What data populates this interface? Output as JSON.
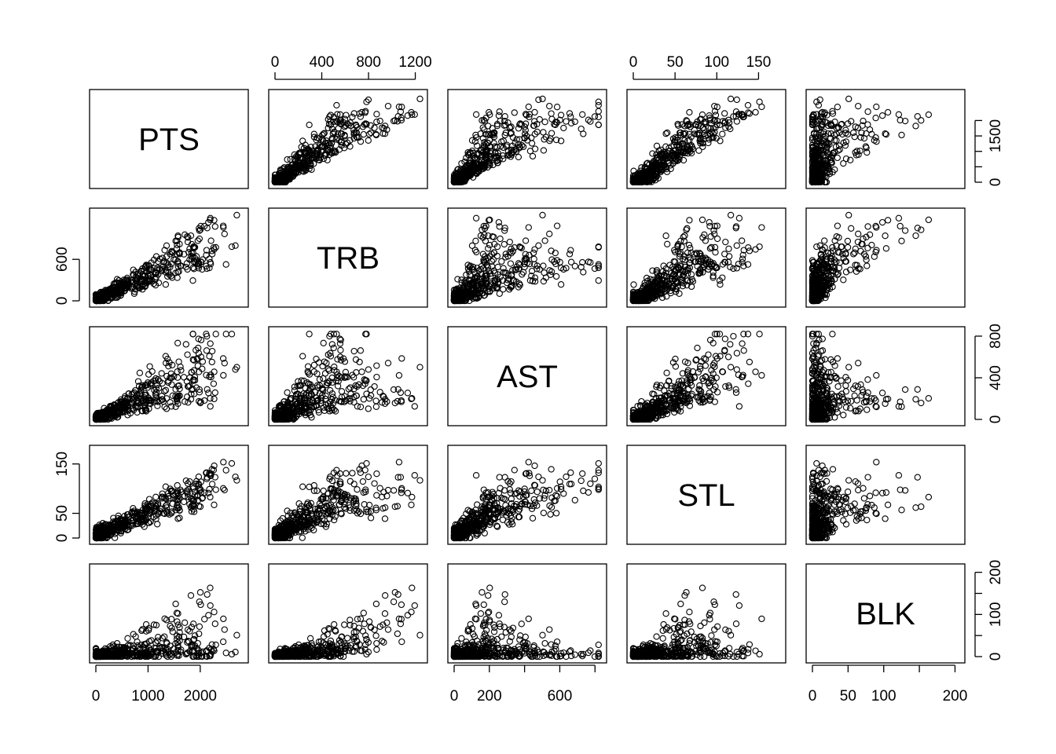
{
  "chart_data": {
    "type": "scatter",
    "kind": "scatterplot-matrix",
    "variables": [
      "PTS",
      "TRB",
      "AST",
      "STL",
      "BLK"
    ],
    "ranges": {
      "PTS": [
        0,
        2800
      ],
      "TRB": [
        0,
        1250
      ],
      "AST": [
        0,
        830
      ],
      "STL": [
        0,
        175
      ],
      "BLK": [
        0,
        205
      ]
    },
    "ticks": {
      "PTS": {
        "values": [
          0,
          1000,
          2000
        ],
        "labels": [
          "0",
          "1000",
          "2000"
        ]
      },
      "PTS_y": {
        "values": [
          0,
          500,
          1000,
          1500,
          2000
        ],
        "labels": [
          "0",
          "",
          "",
          "1500",
          ""
        ]
      },
      "TRB": {
        "values": [
          0,
          400,
          800,
          1200
        ],
        "labels": [
          "0",
          "400",
          "800",
          "1200"
        ]
      },
      "TRB_y": {
        "values": [
          0,
          600
        ],
        "labels": [
          "0",
          "600"
        ]
      },
      "AST": {
        "values": [
          0,
          200,
          400,
          600,
          800
        ],
        "labels": [
          "0",
          "200",
          "",
          "600",
          ""
        ]
      },
      "AST_y": {
        "values": [
          0,
          400,
          800
        ],
        "labels": [
          "0",
          "400",
          "800"
        ]
      },
      "STL": {
        "values": [
          0,
          50,
          100,
          150
        ],
        "labels": [
          "0",
          "50",
          "100",
          "150"
        ]
      },
      "STL_y": {
        "values": [
          0,
          50,
          150
        ],
        "labels": [
          "0",
          "50",
          "150"
        ]
      },
      "BLK": {
        "values": [
          0,
          50,
          100,
          150,
          200
        ],
        "labels": [
          "0",
          "50",
          "100",
          "",
          "200"
        ]
      },
      "BLK_y": {
        "values": [
          0,
          50,
          100,
          150,
          200
        ],
        "labels": [
          "0",
          "",
          "100",
          "",
          "200"
        ]
      }
    },
    "axis_placement": {
      "top": [
        "TRB",
        "STL"
      ],
      "bottom": [
        "PTS",
        "AST",
        "BLK"
      ],
      "left": [
        "TRB",
        "STL"
      ],
      "right": [
        "PTS",
        "AST",
        "BLK"
      ]
    },
    "n_points": 500,
    "marker": "open-circle",
    "grid": false,
    "legend": "none",
    "title": ""
  }
}
